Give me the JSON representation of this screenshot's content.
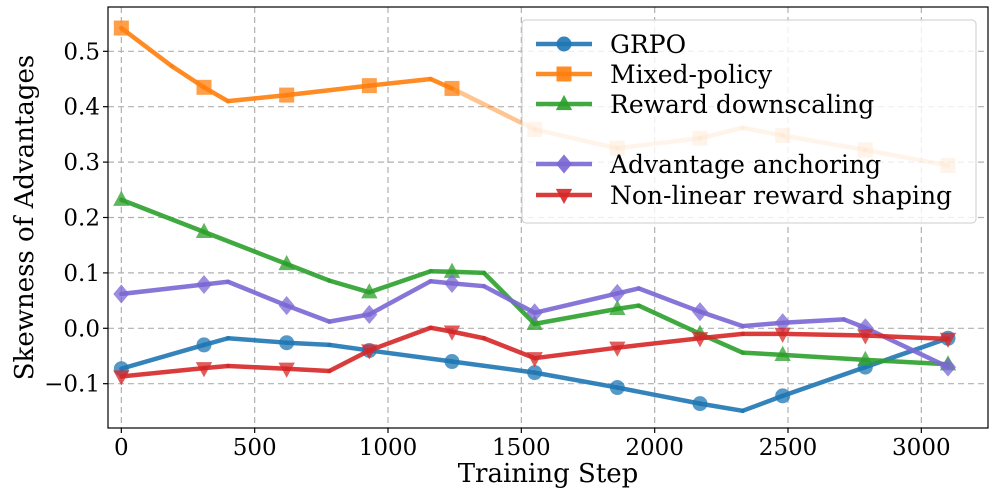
{
  "chart_data": {
    "type": "line",
    "title": "",
    "xlabel": "Training Step",
    "ylabel": "Skewness of Advantages",
    "xlim": [
      -50,
      3250
    ],
    "ylim": [
      -0.18,
      0.58
    ],
    "xticks": [
      0,
      500,
      1000,
      1500,
      2000,
      2500,
      3000
    ],
    "yticks": [
      -0.1,
      0.0,
      0.1,
      0.2,
      0.3,
      0.4,
      0.5
    ],
    "ytick_labels": [
      "−0.1",
      "0.0",
      "0.1",
      "0.2",
      "0.3",
      "0.4",
      "0.5"
    ],
    "grid": true,
    "legend_position": "top-right",
    "series": [
      {
        "name": "GRPO",
        "color": "#1f77b4",
        "marker": "circle",
        "x": [
          0,
          310,
          400,
          620,
          780,
          930,
          1240,
          1550,
          1860,
          2170,
          2330,
          2480,
          2790,
          3100
        ],
        "y": [
          -0.073,
          -0.03,
          -0.018,
          -0.026,
          -0.03,
          -0.04,
          -0.06,
          -0.08,
          -0.107,
          -0.136,
          -0.149,
          -0.122,
          -0.07,
          -0.018
        ]
      },
      {
        "name": "Mixed-policy",
        "color": "#ff7f0e",
        "marker": "square",
        "fade_after_x": 1240,
        "x": [
          0,
          190,
          310,
          400,
          620,
          930,
          1160,
          1240,
          1550,
          1860,
          2170,
          2330,
          2480,
          2790,
          3100
        ],
        "y": [
          0.542,
          0.473,
          0.435,
          0.41,
          0.421,
          0.438,
          0.45,
          0.433,
          0.359,
          0.325,
          0.343,
          0.362,
          0.348,
          0.322,
          0.294
        ]
      },
      {
        "name": "Reward downscaling",
        "color": "#2ca02c",
        "marker": "triangle-up",
        "x": [
          0,
          310,
          620,
          780,
          930,
          1160,
          1240,
          1360,
          1550,
          1860,
          1940,
          2170,
          2330,
          2480,
          2790,
          3100
        ],
        "y": [
          0.232,
          0.174,
          0.116,
          0.086,
          0.065,
          0.103,
          0.102,
          0.1,
          0.008,
          0.035,
          0.041,
          -0.01,
          -0.044,
          -0.048,
          -0.057,
          -0.065
        ]
      },
      {
        "name": "Advantage anchoring",
        "color": "#7b68d4",
        "marker": "diamond",
        "x": [
          0,
          310,
          400,
          620,
          780,
          930,
          1160,
          1240,
          1360,
          1550,
          1860,
          1940,
          2170,
          2330,
          2480,
          2710,
          2790,
          3100
        ],
        "y": [
          0.062,
          0.079,
          0.084,
          0.041,
          0.012,
          0.025,
          0.085,
          0.081,
          0.076,
          0.028,
          0.063,
          0.072,
          0.03,
          0.004,
          0.01,
          0.016,
          0.001,
          -0.07
        ]
      },
      {
        "name": "Non-linear reward shaping",
        "color": "#d62728",
        "marker": "triangle-down",
        "x": [
          0,
          310,
          400,
          620,
          780,
          930,
          1160,
          1240,
          1360,
          1550,
          1860,
          2170,
          2330,
          2480,
          2790,
          3100
        ],
        "y": [
          -0.087,
          -0.072,
          -0.068,
          -0.073,
          -0.077,
          -0.04,
          0.001,
          -0.006,
          -0.018,
          -0.054,
          -0.035,
          -0.018,
          -0.01,
          -0.01,
          -0.013,
          -0.019
        ]
      }
    ]
  }
}
